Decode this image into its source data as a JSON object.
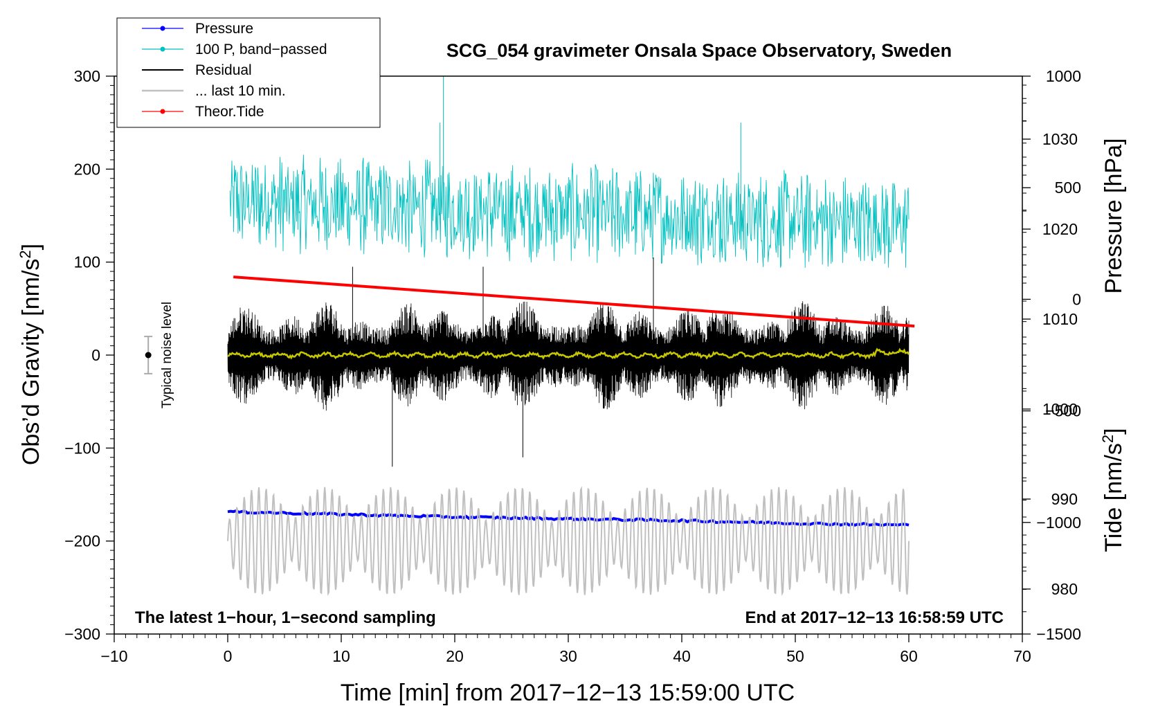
{
  "chart_data": {
    "type": "line",
    "title": "SCG_054 gravimeter Onsala Space Observatory, Sweden",
    "xlabel": "Time [min] from 2017−12−13 15:59:00 UTC",
    "ylabel": "Obs’d Gravity [nm/s",
    "ylabel_sup": "2",
    "ylabel_end": "]",
    "y2label_pressure": "Pressure [hPa]",
    "y2label_tide": "Tide [nm/s",
    "y2label_tide_sup": "2",
    "y2label_tide_end": "]",
    "xlim": [
      -10,
      70
    ],
    "ylim": [
      -300,
      300
    ],
    "pressure_lim": [
      975,
      1037
    ],
    "tide_lim": [
      -1500,
      1000
    ],
    "x_ticks": [
      "−10",
      "0",
      "10",
      "20",
      "30",
      "40",
      "50",
      "60",
      "70"
    ],
    "x_tick_values": [
      -10,
      0,
      10,
      20,
      30,
      40,
      50,
      60,
      70
    ],
    "y_ticks": [
      "−300",
      "−200",
      "−100",
      "0",
      "100",
      "200",
      "300"
    ],
    "y_tick_values": [
      -300,
      -200,
      -100,
      0,
      100,
      200,
      300
    ],
    "pressure_ticks": [
      "980",
      "990",
      "1000",
      "1010",
      "1020",
      "1030"
    ],
    "pressure_tick_values": [
      980,
      990,
      1000,
      1010,
      1020,
      1030
    ],
    "tide_ticks": [
      "−1500",
      "−1000",
      "−500",
      "0",
      "500",
      "1000"
    ],
    "tide_tick_values": [
      -1500,
      -1000,
      -500,
      0,
      500,
      1000
    ],
    "legend": [
      {
        "label": "Pressure",
        "color": "#0000ff",
        "marker": true
      },
      {
        "label": "100 P, band−passed",
        "color": "#00c0c0",
        "marker": true
      },
      {
        "label": "Residual",
        "color": "#000000",
        "marker": false
      },
      {
        "label": "... last 10 min.",
        "color": "#c0c0c0",
        "marker": false
      },
      {
        "label": "Theor.Tide",
        "color": "#ff0000",
        "marker": true
      }
    ],
    "annotations": {
      "left": "The latest 1−hour, 1−second sampling",
      "right": "End at 2017−12−13 16:58:59 UTC",
      "noise": "Typical noise level"
    },
    "noise_bar": {
      "x": -7,
      "y": 0,
      "ymin": -20,
      "ymax": 20
    },
    "series": [
      {
        "name": "Pressure",
        "axis": "pressure",
        "color": "#0000ff",
        "x": [
          0,
          10,
          20,
          30,
          40,
          50,
          60
        ],
        "values": [
          988.6,
          988.3,
          988.0,
          987.8,
          987.6,
          987.3,
          987.1
        ]
      },
      {
        "name": "100 P, band-passed",
        "axis": "gravity",
        "color": "#00c0c0",
        "center": 165,
        "center_end": 140,
        "amplitude": 55,
        "spikes": [
          {
            "x": 19.0,
            "value": 300
          },
          {
            "x": 18.7,
            "value": 250
          },
          {
            "x": 45.2,
            "value": 250
          }
        ]
      },
      {
        "name": "Residual",
        "axis": "gravity",
        "color": "#000000",
        "center": 0,
        "amplitude": 60,
        "peaks": [
          {
            "x": 11,
            "value": 95
          },
          {
            "x": 14.5,
            "value": -120
          },
          {
            "x": 22.5,
            "value": 95
          },
          {
            "x": 26,
            "value": -110
          },
          {
            "x": 37.5,
            "value": 105
          }
        ]
      },
      {
        "name": "Residual smoothed",
        "axis": "gravity",
        "color": "#c8c800",
        "center": 0,
        "amplitude": 3
      },
      {
        "name": "Theor.Tide",
        "axis": "tide",
        "color": "#ff0000",
        "x": [
          0.5,
          60.5
        ],
        "values": [
          100,
          -120
        ]
      },
      {
        "name": "... last 10 min.",
        "axis": "gravity",
        "color": "#c0c0c0",
        "x_start": 0,
        "x_end": 60,
        "center": -200,
        "amplitude": 58
      }
    ]
  }
}
